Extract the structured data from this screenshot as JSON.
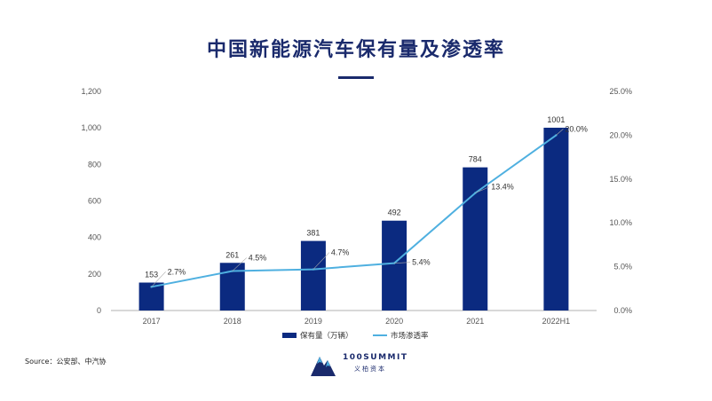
{
  "title": "中国新能源汽车保有量及渗透率",
  "source": "Source：公安部、中汽协",
  "logo": {
    "name": "100SUMMIT",
    "subtitle": "义柏资本"
  },
  "colors": {
    "bar": "#0b2a80",
    "line": "#4fb0e0",
    "title": "#1a2a6c"
  },
  "chart_data": {
    "type": "bar+line",
    "categories": [
      "2017",
      "2018",
      "2019",
      "2020",
      "2021",
      "2022H1"
    ],
    "series": [
      {
        "name": "保有量（万辆）",
        "type": "bar",
        "axis": "left",
        "values": [
          153,
          261,
          381,
          492,
          784,
          1001
        ],
        "labels": [
          "153",
          "261",
          "381",
          "492",
          "784",
          "1001"
        ]
      },
      {
        "name": "市场渗透率",
        "type": "line",
        "axis": "right",
        "values": [
          2.7,
          4.5,
          4.7,
          5.4,
          13.4,
          20.0
        ],
        "labels": [
          "2.7%",
          "4.5%",
          "4.7%",
          "5.4%",
          "13.4%",
          "20.0%"
        ]
      }
    ],
    "left_axis": {
      "ylim": [
        0,
        1200
      ],
      "ticks": [
        0,
        200,
        400,
        600,
        800,
        1000,
        1200
      ],
      "tick_labels": [
        "0",
        "200",
        "400",
        "600",
        "800",
        "1,000",
        "1,200"
      ]
    },
    "right_axis": {
      "ylim": [
        0,
        25
      ],
      "ticks": [
        0,
        5,
        10,
        15,
        20,
        25
      ],
      "tick_labels": [
        "0.0%",
        "5.0%",
        "10.0%",
        "15.0%",
        "20.0%",
        "25.0%"
      ]
    },
    "grid": false,
    "legend_position": "bottom"
  }
}
